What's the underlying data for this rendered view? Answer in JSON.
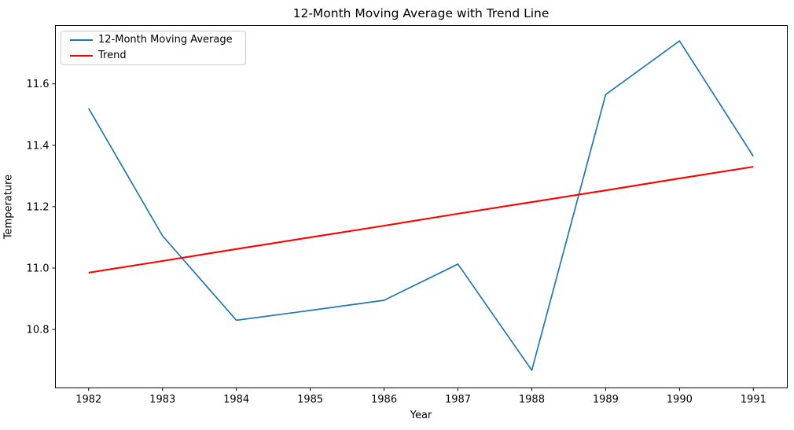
{
  "figure": {
    "title": "12-Month Moving Average with Trend Line",
    "xlabel": "Year",
    "ylabel": "Temperature"
  },
  "legend": {
    "position": "upper left",
    "items": [
      {
        "label": "12-Month Moving Average",
        "color": "#1f77b4"
      },
      {
        "label": "Trend",
        "color": "#ff0000"
      }
    ]
  },
  "chart_data": {
    "type": "line",
    "title": "12-Month Moving Average with Trend Line",
    "xlabel": "Year",
    "ylabel": "Temperature",
    "x": [
      1982,
      1983,
      1984,
      1985,
      1986,
      1987,
      1988,
      1989,
      1990,
      1991
    ],
    "series": [
      {
        "name": "12-Month Moving Average",
        "color": "#1f77b4",
        "linewidth": 1.7,
        "values": [
          11.52,
          11.105,
          10.83,
          10.862,
          10.895,
          11.013,
          10.667,
          11.565,
          11.74,
          11.364
        ]
      },
      {
        "name": "Trend",
        "color": "#ff0000",
        "linewidth": 2.1,
        "values": [
          10.985,
          11.023,
          11.062,
          11.1,
          11.138,
          11.177,
          11.215,
          11.253,
          11.292,
          11.33
        ]
      }
    ],
    "xticks": [
      1982,
      1983,
      1984,
      1985,
      1986,
      1987,
      1988,
      1989,
      1990,
      1991
    ],
    "xtick_labels": [
      "1982",
      "1983",
      "1984",
      "1985",
      "1986",
      "1987",
      "1988",
      "1989",
      "1990",
      "1991"
    ],
    "yticks": [
      10.8,
      11.0,
      11.2,
      11.4,
      11.6
    ],
    "ytick_labels": [
      "10.8",
      "11.0",
      "11.2",
      "11.4",
      "11.6"
    ],
    "xlim": [
      1981.55,
      1991.46
    ],
    "ylim": [
      10.61,
      11.79
    ],
    "grid": false,
    "legend_position": "upper left",
    "spine_color": "#000000"
  }
}
